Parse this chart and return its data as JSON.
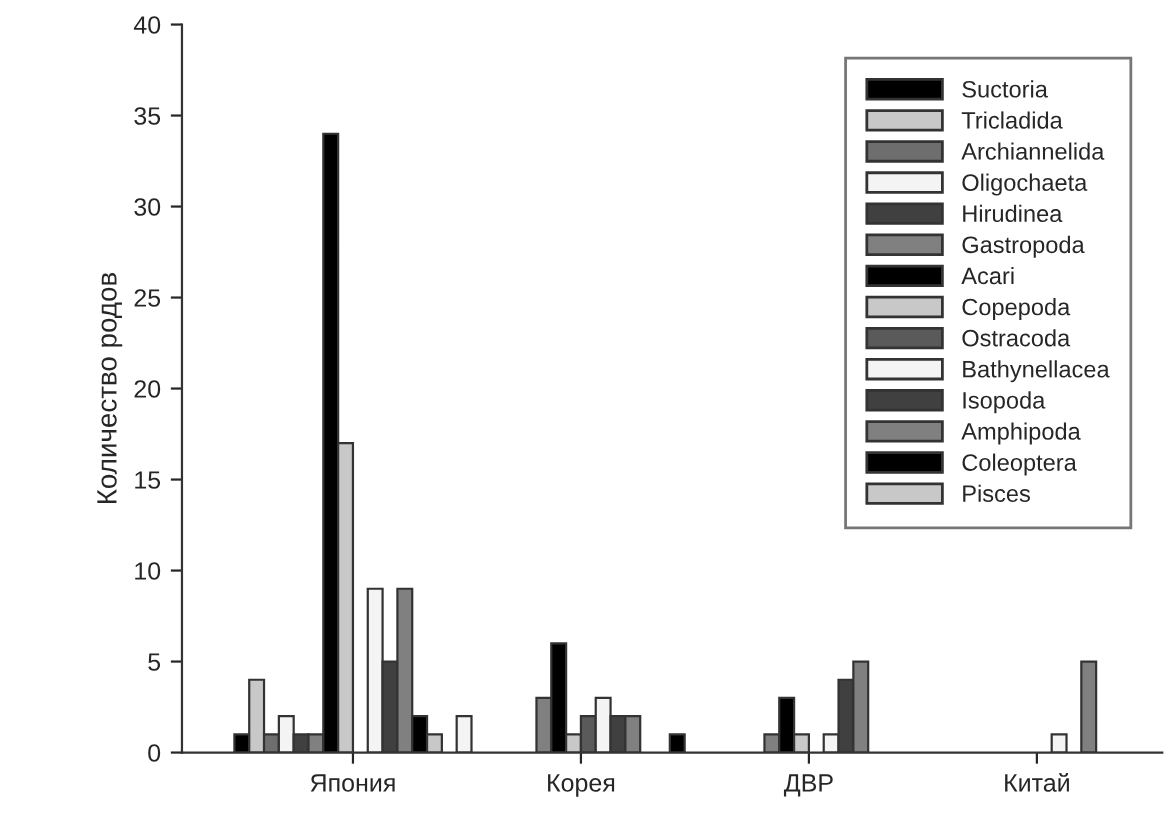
{
  "chart_data": {
    "type": "bar",
    "ylabel": "Количество родов",
    "categories": [
      "Япония",
      "Корея",
      "ДВР",
      "Китай"
    ],
    "ylim": [
      0,
      40
    ],
    "yticks": [
      0,
      5,
      10,
      15,
      20,
      25,
      30,
      35,
      40
    ],
    "grid": false,
    "legend": "top right",
    "series": [
      {
        "name": "Suctoria",
        "color": "#000000",
        "values": [
          1,
          null,
          null,
          null
        ]
      },
      {
        "name": "Tricladida",
        "color": "#c8c8c8",
        "values": [
          4,
          null,
          null,
          null
        ]
      },
      {
        "name": "Archiannelida",
        "color": "#6e6e6e",
        "values": [
          1,
          null,
          null,
          null
        ]
      },
      {
        "name": "Oligochaeta",
        "color": "#f4f4f4",
        "values": [
          2,
          null,
          null,
          null
        ]
      },
      {
        "name": "Hirudinea",
        "color": "#404040",
        "values": [
          1,
          null,
          null,
          null
        ]
      },
      {
        "name": "Gastropoda",
        "color": "#808080",
        "values": [
          1,
          3,
          1,
          null
        ]
      },
      {
        "name": "Acari",
        "color": "#000000",
        "values": [
          34,
          6,
          3,
          null
        ]
      },
      {
        "name": "Copepoda",
        "color": "#c8c8c8",
        "values": [
          17,
          1,
          1,
          null
        ]
      },
      {
        "name": "Ostracoda",
        "color": "#5a5a5a",
        "values": [
          null,
          2,
          null,
          null
        ]
      },
      {
        "name": "Bathynellacea",
        "color": "#f4f4f4",
        "values": [
          9,
          3,
          1,
          1
        ]
      },
      {
        "name": "Isopoda",
        "color": "#404040",
        "values": [
          5,
          2,
          4,
          null
        ]
      },
      {
        "name": "Amphipoda",
        "color": "#808080",
        "values": [
          9,
          2,
          5,
          5
        ]
      },
      {
        "name": "Coleoptera",
        "color": "#000000",
        "values": [
          2,
          null,
          null,
          null
        ]
      },
      {
        "name": "Pisces",
        "color": "#c8c8c8",
        "values": [
          1,
          null,
          null,
          null
        ]
      },
      {
        "color": "#000000",
        "values": [
          null,
          1,
          null,
          null
        ]
      },
      {
        "color": "#f4f4f4",
        "values": [
          2,
          null,
          null,
          null
        ]
      }
    ]
  }
}
